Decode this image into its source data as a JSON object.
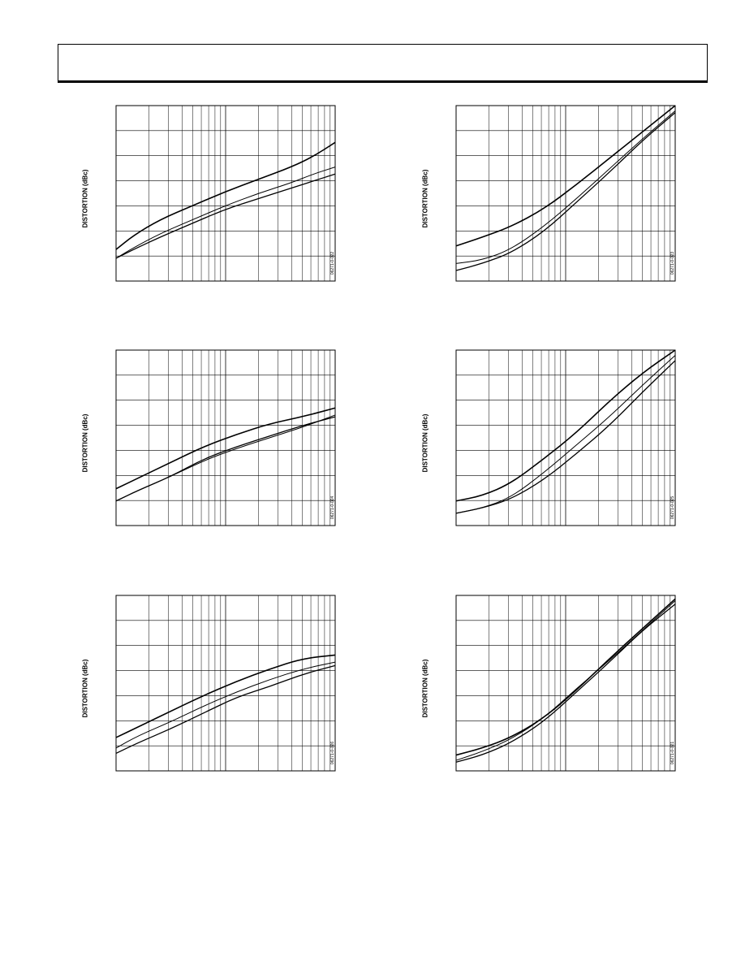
{
  "page": {
    "header": ""
  },
  "chart_data": [
    {
      "id": "c1",
      "type": "line",
      "title": "",
      "ylabel": "DISTORTION (dBc)",
      "figure_id": "06271-0-022",
      "x_scale": "log",
      "grid": true,
      "series": [
        {
          "name": "",
          "points": [
            [
              0,
              0.18
            ],
            [
              0.08,
              0.26
            ],
            [
              0.2,
              0.35
            ],
            [
              0.35,
              0.43
            ],
            [
              0.5,
              0.51
            ],
            [
              0.65,
              0.58
            ],
            [
              0.8,
              0.65
            ],
            [
              0.9,
              0.71
            ],
            [
              1,
              0.79
            ]
          ]
        },
        {
          "name": "",
          "points": [
            [
              0,
              0.13
            ],
            [
              0.08,
              0.19
            ],
            [
              0.2,
              0.27
            ],
            [
              0.35,
              0.35
            ],
            [
              0.5,
              0.43
            ],
            [
              0.65,
              0.5
            ],
            [
              0.8,
              0.56
            ],
            [
              0.9,
              0.61
            ],
            [
              1,
              0.65
            ]
          ]
        },
        {
          "name": "",
          "points": [
            [
              0,
              0.13
            ],
            [
              0.08,
              0.18
            ],
            [
              0.2,
              0.25
            ],
            [
              0.35,
              0.33
            ],
            [
              0.5,
              0.41
            ],
            [
              0.65,
              0.47
            ],
            [
              0.8,
              0.53
            ],
            [
              0.9,
              0.57
            ],
            [
              1,
              0.61
            ]
          ]
        }
      ]
    },
    {
      "id": "c2",
      "type": "line",
      "title": "",
      "ylabel": "DISTORTION (dBc)",
      "figure_id": "06271-0-023",
      "x_scale": "log",
      "grid": true,
      "series": [
        {
          "name": "",
          "points": [
            [
              0,
              0.2
            ],
            [
              0.12,
              0.25
            ],
            [
              0.25,
              0.31
            ],
            [
              0.4,
              0.41
            ],
            [
              0.55,
              0.55
            ],
            [
              0.7,
              0.7
            ],
            [
              0.85,
              0.85
            ],
            [
              1,
              1
            ]
          ]
        },
        {
          "name": "",
          "points": [
            [
              0,
              0.1
            ],
            [
              0.12,
              0.12
            ],
            [
              0.25,
              0.18
            ],
            [
              0.4,
              0.31
            ],
            [
              0.55,
              0.47
            ],
            [
              0.7,
              0.64
            ],
            [
              0.85,
              0.81
            ],
            [
              1,
              0.97
            ]
          ]
        },
        {
          "name": "",
          "points": [
            [
              0,
              0.06
            ],
            [
              0.12,
              0.1
            ],
            [
              0.25,
              0.16
            ],
            [
              0.4,
              0.28
            ],
            [
              0.55,
              0.45
            ],
            [
              0.7,
              0.62
            ],
            [
              0.85,
              0.8
            ],
            [
              1,
              0.96
            ]
          ]
        }
      ]
    },
    {
      "id": "c3",
      "type": "line",
      "title": "",
      "ylabel": "DISTORTION (dBc)",
      "figure_id": "06271-0-024",
      "x_scale": "log",
      "grid": true,
      "series": [
        {
          "name": "",
          "points": [
            [
              0,
              0.21
            ],
            [
              0.1,
              0.27
            ],
            [
              0.25,
              0.36
            ],
            [
              0.4,
              0.45
            ],
            [
              0.55,
              0.52
            ],
            [
              0.7,
              0.58
            ],
            [
              0.85,
              0.62
            ],
            [
              1,
              0.67
            ]
          ]
        },
        {
          "name": "",
          "points": [
            [
              0,
              0.14
            ],
            [
              0.1,
              0.2
            ],
            [
              0.25,
              0.28
            ],
            [
              0.4,
              0.37
            ],
            [
              0.55,
              0.44
            ],
            [
              0.7,
              0.5
            ],
            [
              0.85,
              0.56
            ],
            [
              1,
              0.63
            ]
          ]
        },
        {
          "name": "",
          "points": [
            [
              0,
              0.14
            ],
            [
              0.1,
              0.2
            ],
            [
              0.25,
              0.28
            ],
            [
              0.4,
              0.38
            ],
            [
              0.55,
              0.45
            ],
            [
              0.7,
              0.51
            ],
            [
              0.85,
              0.57
            ],
            [
              1,
              0.62
            ]
          ]
        }
      ]
    },
    {
      "id": "c4",
      "type": "line",
      "title": "",
      "ylabel": "DISTORTION (dBc)",
      "figure_id": "06271-0-025",
      "x_scale": "log",
      "grid": true,
      "series": [
        {
          "name": "",
          "points": [
            [
              0,
              0.14
            ],
            [
              0.12,
              0.17
            ],
            [
              0.25,
              0.24
            ],
            [
              0.4,
              0.38
            ],
            [
              0.55,
              0.53
            ],
            [
              0.7,
              0.71
            ],
            [
              0.85,
              0.87
            ],
            [
              1,
              1
            ]
          ]
        },
        {
          "name": "",
          "points": [
            [
              0,
              0.07
            ],
            [
              0.12,
              0.1
            ],
            [
              0.25,
              0.16
            ],
            [
              0.4,
              0.3
            ],
            [
              0.55,
              0.46
            ],
            [
              0.7,
              0.62
            ],
            [
              0.85,
              0.8
            ],
            [
              1,
              0.97
            ]
          ]
        },
        {
          "name": "",
          "points": [
            [
              0,
              0.07
            ],
            [
              0.12,
              0.1
            ],
            [
              0.25,
              0.15
            ],
            [
              0.4,
              0.26
            ],
            [
              0.55,
              0.41
            ],
            [
              0.7,
              0.57
            ],
            [
              0.85,
              0.76
            ],
            [
              1,
              0.94
            ]
          ]
        }
      ]
    },
    {
      "id": "c5",
      "type": "line",
      "title": "",
      "ylabel": "DISTORTION (dBc)",
      "figure_id": "06271-0-026",
      "x_scale": "log",
      "grid": true,
      "series": [
        {
          "name": "",
          "points": [
            [
              0,
              0.19
            ],
            [
              0.1,
              0.25
            ],
            [
              0.25,
              0.34
            ],
            [
              0.4,
              0.43
            ],
            [
              0.55,
              0.51
            ],
            [
              0.7,
              0.58
            ],
            [
              0.85,
              0.64
            ],
            [
              1,
              0.66
            ]
          ]
        },
        {
          "name": "",
          "points": [
            [
              0,
              0.13
            ],
            [
              0.1,
              0.2
            ],
            [
              0.25,
              0.28
            ],
            [
              0.4,
              0.37
            ],
            [
              0.55,
              0.45
            ],
            [
              0.7,
              0.52
            ],
            [
              0.85,
              0.58
            ],
            [
              1,
              0.62
            ]
          ]
        },
        {
          "name": "",
          "points": [
            [
              0,
              0.1
            ],
            [
              0.1,
              0.16
            ],
            [
              0.25,
              0.24
            ],
            [
              0.4,
              0.33
            ],
            [
              0.55,
              0.42
            ],
            [
              0.7,
              0.48
            ],
            [
              0.85,
              0.55
            ],
            [
              1,
              0.6
            ]
          ]
        }
      ]
    },
    {
      "id": "c6",
      "type": "line",
      "title": "",
      "ylabel": "DISTORTION (dBc)",
      "figure_id": "06271-0-021",
      "x_scale": "log",
      "grid": true,
      "series": [
        {
          "name": "",
          "points": [
            [
              0,
              0.09
            ],
            [
              0.12,
              0.13
            ],
            [
              0.25,
              0.19
            ],
            [
              0.4,
              0.3
            ],
            [
              0.55,
              0.46
            ],
            [
              0.7,
              0.64
            ],
            [
              0.85,
              0.81
            ],
            [
              1,
              0.98
            ]
          ]
        },
        {
          "name": "",
          "points": [
            [
              0,
              0.06
            ],
            [
              0.12,
              0.11
            ],
            [
              0.25,
              0.18
            ],
            [
              0.4,
              0.3
            ],
            [
              0.55,
              0.47
            ],
            [
              0.7,
              0.63
            ],
            [
              0.85,
              0.8
            ],
            [
              1,
              0.97
            ]
          ]
        },
        {
          "name": "",
          "points": [
            [
              0,
              0.05
            ],
            [
              0.12,
              0.09
            ],
            [
              0.25,
              0.16
            ],
            [
              0.4,
              0.28
            ],
            [
              0.55,
              0.45
            ],
            [
              0.7,
              0.62
            ],
            [
              0.85,
              0.8
            ],
            [
              1,
              0.95
            ]
          ]
        }
      ]
    }
  ]
}
